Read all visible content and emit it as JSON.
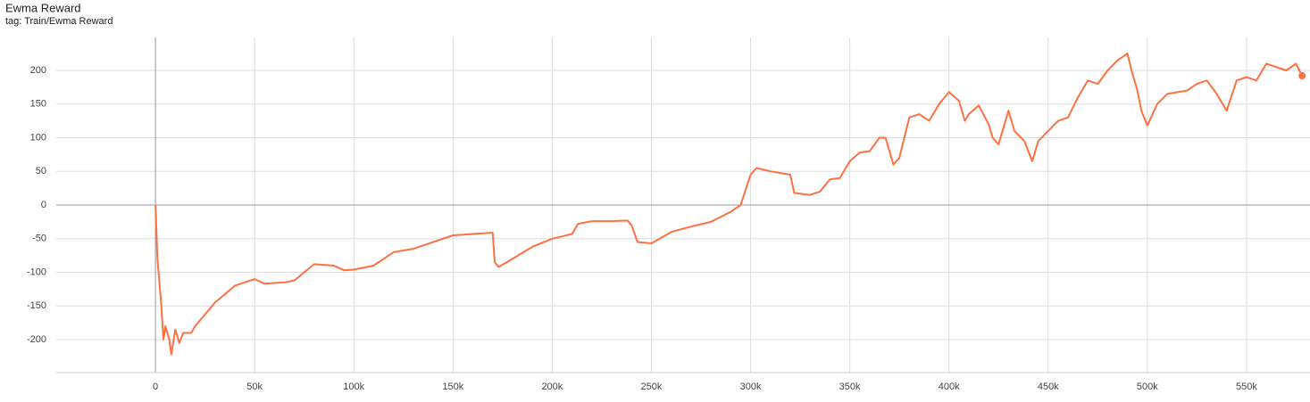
{
  "chart_data": {
    "type": "line",
    "title": "Ewma Reward",
    "subtitle": "tag: Train/Ewma Reward",
    "x": [
      0,
      1000,
      3000,
      4000,
      5000,
      7000,
      8000,
      10000,
      12000,
      14000,
      18000,
      20000,
      30000,
      40000,
      50000,
      55000,
      65000,
      70000,
      75000,
      80000,
      90000,
      95000,
      100000,
      110000,
      120000,
      130000,
      140000,
      150000,
      160000,
      170000,
      171000,
      173000,
      180000,
      190000,
      200000,
      210000,
      213000,
      220000,
      230000,
      238000,
      240000,
      243000,
      250000,
      260000,
      270000,
      280000,
      290000,
      295000,
      300000,
      303000,
      310000,
      320000,
      322000,
      330000,
      335000,
      340000,
      345000,
      350000,
      355000,
      360000,
      365000,
      368000,
      372000,
      375000,
      380000,
      385000,
      390000,
      395000,
      400000,
      405000,
      408000,
      410000,
      415000,
      420000,
      422000,
      425000,
      430000,
      433000,
      438000,
      442000,
      445000,
      450000,
      455000,
      460000,
      465000,
      470000,
      475000,
      480000,
      485000,
      490000,
      492000,
      495000,
      497000,
      500000,
      505000,
      510000,
      520000,
      525000,
      530000,
      535000,
      540000,
      545000,
      550000,
      555000,
      560000,
      570000,
      575000,
      578000
    ],
    "series": [
      {
        "name": "Train/Ewma Reward",
        "color": "#ff7043",
        "values": [
          0,
          -80,
          -150,
          -200,
          -180,
          -200,
          -222,
          -185,
          -205,
          -190,
          -190,
          -180,
          -145,
          -120,
          -110,
          -117,
          -115,
          -112,
          -100,
          -88,
          -90,
          -97,
          -96,
          -90,
          -70,
          -65,
          -55,
          -45,
          -43,
          -41,
          -85,
          -92,
          -80,
          -62,
          -50,
          -43,
          -28,
          -24,
          -24,
          -23,
          -30,
          -55,
          -57,
          -40,
          -32,
          -25,
          -10,
          0,
          45,
          55,
          50,
          45,
          18,
          15,
          20,
          38,
          40,
          65,
          78,
          80,
          100,
          100,
          60,
          70,
          130,
          135,
          125,
          150,
          168,
          155,
          125,
          135,
          148,
          120,
          100,
          90,
          140,
          110,
          95,
          65,
          95,
          110,
          125,
          130,
          160,
          185,
          180,
          200,
          215,
          225,
          200,
          170,
          140,
          118,
          150,
          165,
          170,
          180,
          185,
          165,
          140,
          185,
          190,
          185,
          210,
          200,
          210,
          192
        ]
      }
    ],
    "xlim": [
      -50000,
      582000
    ],
    "xticks": [
      {
        "value": 0,
        "label": "0"
      },
      {
        "value": 50000,
        "label": "50k"
      },
      {
        "value": 100000,
        "label": "100k"
      },
      {
        "value": 150000,
        "label": "150k"
      },
      {
        "value": 200000,
        "label": "200k"
      },
      {
        "value": 250000,
        "label": "250k"
      },
      {
        "value": 300000,
        "label": "300k"
      },
      {
        "value": 350000,
        "label": "350k"
      },
      {
        "value": 400000,
        "label": "400k"
      },
      {
        "value": 450000,
        "label": "450k"
      },
      {
        "value": 500000,
        "label": "500k"
      },
      {
        "value": 550000,
        "label": "550k"
      }
    ],
    "ylim": [
      -249,
      249
    ],
    "yticks": [
      -200,
      -150,
      -100,
      -50,
      0,
      50,
      100,
      150,
      200
    ],
    "grid": true
  }
}
